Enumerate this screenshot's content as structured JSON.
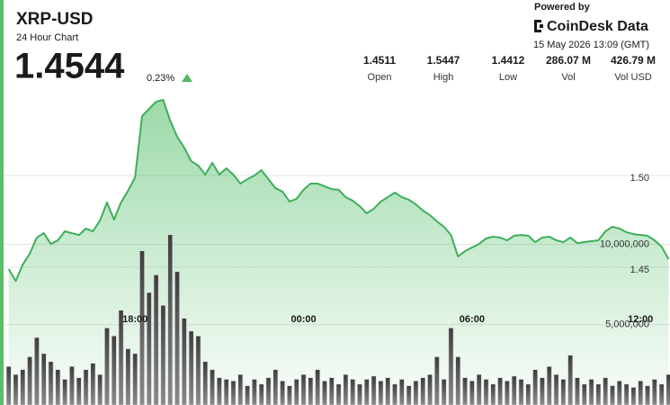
{
  "header": {
    "title": "XRP-USD",
    "subtitle": "24 Hour Chart",
    "price": "1.4544",
    "change": "0.23%",
    "powered_by": "Powered by",
    "brand": "CoinDesk Data",
    "timestamp": "15 May 2026 13:09 (GMT)",
    "stats": [
      {
        "value": "1.4511",
        "label": "Open"
      },
      {
        "value": "1.5447",
        "label": "High"
      },
      {
        "value": "1.4412",
        "label": "Low"
      },
      {
        "value": "286.07 M",
        "label": "Vol"
      },
      {
        "value": "426.79 M",
        "label": "Vol USD"
      }
    ]
  },
  "chart_data": {
    "type": "area",
    "x": [
      13.5,
      13.75,
      14,
      14.25,
      14.5,
      14.75,
      15,
      15.25,
      15.5,
      15.75,
      16,
      16.25,
      16.5,
      16.75,
      17,
      17.25,
      17.5,
      17.75,
      18,
      18.25,
      18.5,
      18.75,
      19,
      19.25,
      19.5,
      19.75,
      20,
      20.25,
      20.5,
      20.75,
      21,
      21.25,
      21.5,
      21.75,
      22,
      22.25,
      22.5,
      22.75,
      23,
      23.25,
      23.5,
      23.75,
      24,
      24.25,
      24.5,
      24.75,
      25,
      25.25,
      25.5,
      25.75,
      26,
      26.25,
      26.5,
      26.75,
      27,
      27.25,
      27.5,
      27.75,
      28,
      28.25,
      28.5,
      28.75,
      29,
      29.25,
      29.5,
      29.75,
      30,
      30.25,
      30.5,
      30.75,
      31,
      31.25,
      31.5,
      31.75,
      32,
      32.25,
      32.5,
      32.75,
      33,
      33.25,
      33.5,
      33.75,
      34,
      34.25,
      34.5,
      34.75,
      35,
      35.25,
      35.5,
      35.75,
      36,
      36.25,
      36.5,
      36.75,
      37
    ],
    "xlim": [
      13.35,
      37.05
    ],
    "xticks": [
      {
        "value": 18,
        "label": "18:00"
      },
      {
        "value": 24,
        "label": "00:00"
      },
      {
        "value": 30,
        "label": "06:00"
      },
      {
        "value": 36,
        "label": "12:00"
      }
    ],
    "ylim": [
      1.375,
      1.55
    ],
    "yticks": [
      1.45,
      {
        "value": 1.5,
        "label": "1.50"
      }
    ],
    "y2lim": [
      0,
      20000000
    ],
    "y2ticks": [
      {
        "value": 5000000,
        "label": "5,000,000"
      },
      {
        "value": 10000000,
        "label": "10,000,000"
      }
    ],
    "grid": true,
    "series": [
      {
        "type": "area",
        "color": "#3fae5a",
        "values": [
          1.449,
          1.4426,
          1.4515,
          1.4574,
          1.4662,
          1.4686,
          1.4627,
          1.4647,
          1.4696,
          1.4686,
          1.4676,
          1.4711,
          1.4696,
          1.4755,
          1.4853,
          1.476,
          1.4853,
          1.4917,
          1.499,
          1.5324,
          1.5363,
          1.5402,
          1.5412,
          1.5299,
          1.5211,
          1.5152,
          1.5078,
          1.5054,
          1.5005,
          1.5069,
          1.5005,
          1.5039,
          1.5005,
          1.4956,
          1.498,
          1.5,
          1.5029,
          1.498,
          1.4931,
          1.4912,
          1.4858,
          1.4873,
          1.4922,
          1.4956,
          1.4956,
          1.4941,
          1.4926,
          1.4922,
          1.4882,
          1.4863,
          1.4833,
          1.4794,
          1.4819,
          1.4858,
          1.4882,
          1.4907,
          1.4882,
          1.4868,
          1.4843,
          1.4809,
          1.4784,
          1.475,
          1.4721,
          1.4676,
          1.4559,
          1.4588,
          1.4608,
          1.4627,
          1.4657,
          1.4667,
          1.4662,
          1.4647,
          1.4672,
          1.4676,
          1.4672,
          1.4637,
          1.4662,
          1.4667,
          1.4647,
          1.4637,
          1.4662,
          1.4632,
          1.4637,
          1.4642,
          1.4647,
          1.4696,
          1.4721,
          1.4711,
          1.4691,
          1.4681,
          1.4676,
          1.4672,
          1.4647,
          1.4613,
          1.4544
        ]
      },
      {
        "type": "bar",
        "axis": "y2",
        "color": "#5e5e5e",
        "values": [
          2400000,
          1900000,
          2200000,
          3000000,
          4200000,
          3200000,
          2700000,
          2200000,
          1600000,
          2400000,
          1700000,
          2200000,
          2600000,
          1900000,
          4800000,
          4300000,
          5900000,
          3500000,
          3200000,
          9600000,
          7000000,
          8100000,
          6200000,
          10600000,
          8300000,
          5400000,
          4600000,
          4300000,
          2700000,
          2200000,
          1700000,
          1600000,
          1500000,
          1900000,
          1200000,
          1600000,
          1300000,
          1700000,
          2200000,
          1500000,
          1200000,
          1600000,
          1900000,
          1700000,
          2200000,
          1500000,
          1700000,
          1300000,
          1900000,
          1600000,
          1300000,
          1600000,
          1800000,
          1500000,
          1700000,
          1300000,
          1600000,
          1200000,
          1500000,
          1700000,
          1900000,
          3000000,
          1600000,
          4800000,
          3000000,
          1700000,
          1500000,
          1900000,
          1600000,
          1300000,
          1700000,
          1500000,
          1800000,
          1600000,
          1300000,
          2200000,
          1700000,
          2400000,
          1900000,
          1600000,
          3100000,
          1700000,
          1300000,
          1600000,
          1300000,
          1700000,
          1200000,
          1500000,
          1300000,
          1100000,
          1500000,
          1200000,
          1600000,
          1300000,
          1900000
        ]
      }
    ]
  }
}
